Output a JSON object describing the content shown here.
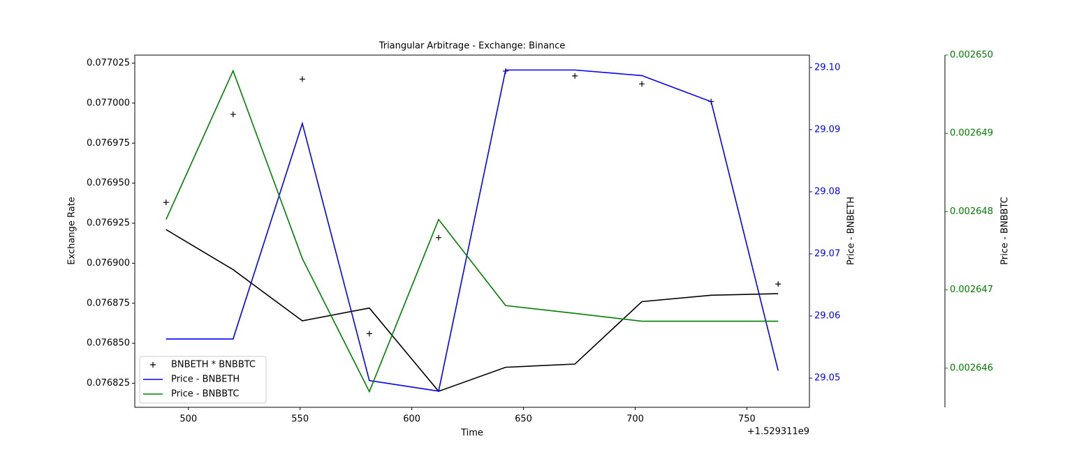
{
  "chart_data": {
    "type": "line",
    "title": "Triangular Arbitrage - Exchange: Binance",
    "xlabel": "Time",
    "x_offset_label": "+1.529311e9",
    "ylabel": "Exchange Rate",
    "y2label": "Price - BNBETH",
    "y3label": "Price - BNBBTC",
    "x": [
      490,
      520,
      551,
      581,
      612,
      642,
      673,
      703,
      734,
      764
    ],
    "xlim": [
      476,
      778
    ],
    "xticks": [
      500,
      550,
      600,
      650,
      700,
      750
    ],
    "ylim": [
      0.07681,
      0.07703
    ],
    "yticks": [
      {
        "value": 0.076825,
        "label": "0.076825"
      },
      {
        "value": 0.07685,
        "label": "0.076850"
      },
      {
        "value": 0.076875,
        "label": "0.076875"
      },
      {
        "value": 0.0769,
        "label": "0.076900"
      },
      {
        "value": 0.076925,
        "label": "0.076925"
      },
      {
        "value": 0.07695,
        "label": "0.076950"
      },
      {
        "value": 0.076975,
        "label": "0.076975"
      },
      {
        "value": 0.077,
        "label": "0.077000"
      },
      {
        "value": 0.077025,
        "label": "0.077025"
      }
    ],
    "y2lim": [
      29.0453,
      29.102
    ],
    "y2ticks": [
      29.05,
      29.06,
      29.07,
      29.08,
      29.09,
      {
        "value": 29.1,
        "label": "29.10"
      }
    ],
    "y3lim": [
      0.0026455,
      0.00265
    ],
    "y3ticks": [
      0.002646,
      0.002647,
      0.002648,
      0.002649,
      {
        "value": 0.00265,
        "label": "0.002650"
      }
    ],
    "legend": "lower left",
    "series": [
      {
        "name": "BNBETH * BNBBTC",
        "color": "#000000",
        "marker": "+",
        "values": [
          0.076938,
          0.076993,
          0.077015,
          0.076856,
          0.076916,
          0.07702,
          0.077017,
          0.077012,
          0.077001,
          0.076887
        ]
      },
      {
        "color": "#000000",
        "values": [
          0.076921,
          0.076896,
          0.076864,
          0.076872,
          0.07682,
          0.076835,
          0.076837,
          0.076876,
          0.07688,
          0.076881
        ]
      },
      {
        "name": "Price - BNBETH",
        "color": "#0000ff",
        "axis": "y2",
        "values": [
          29.0563,
          29.0563,
          29.091,
          29.0496,
          29.0479,
          29.0996,
          29.0996,
          29.0987,
          29.0945,
          29.0512
        ]
      },
      {
        "name": "Price - BNBBTC",
        "color": "#008000",
        "axis": "y3",
        "values": [
          0.0026479,
          0.0026498,
          0.0026474,
          0.0026457,
          0.0026479,
          0.0026468,
          0.0026467,
          0.0026466,
          0.0026466,
          0.0026466
        ]
      }
    ]
  }
}
